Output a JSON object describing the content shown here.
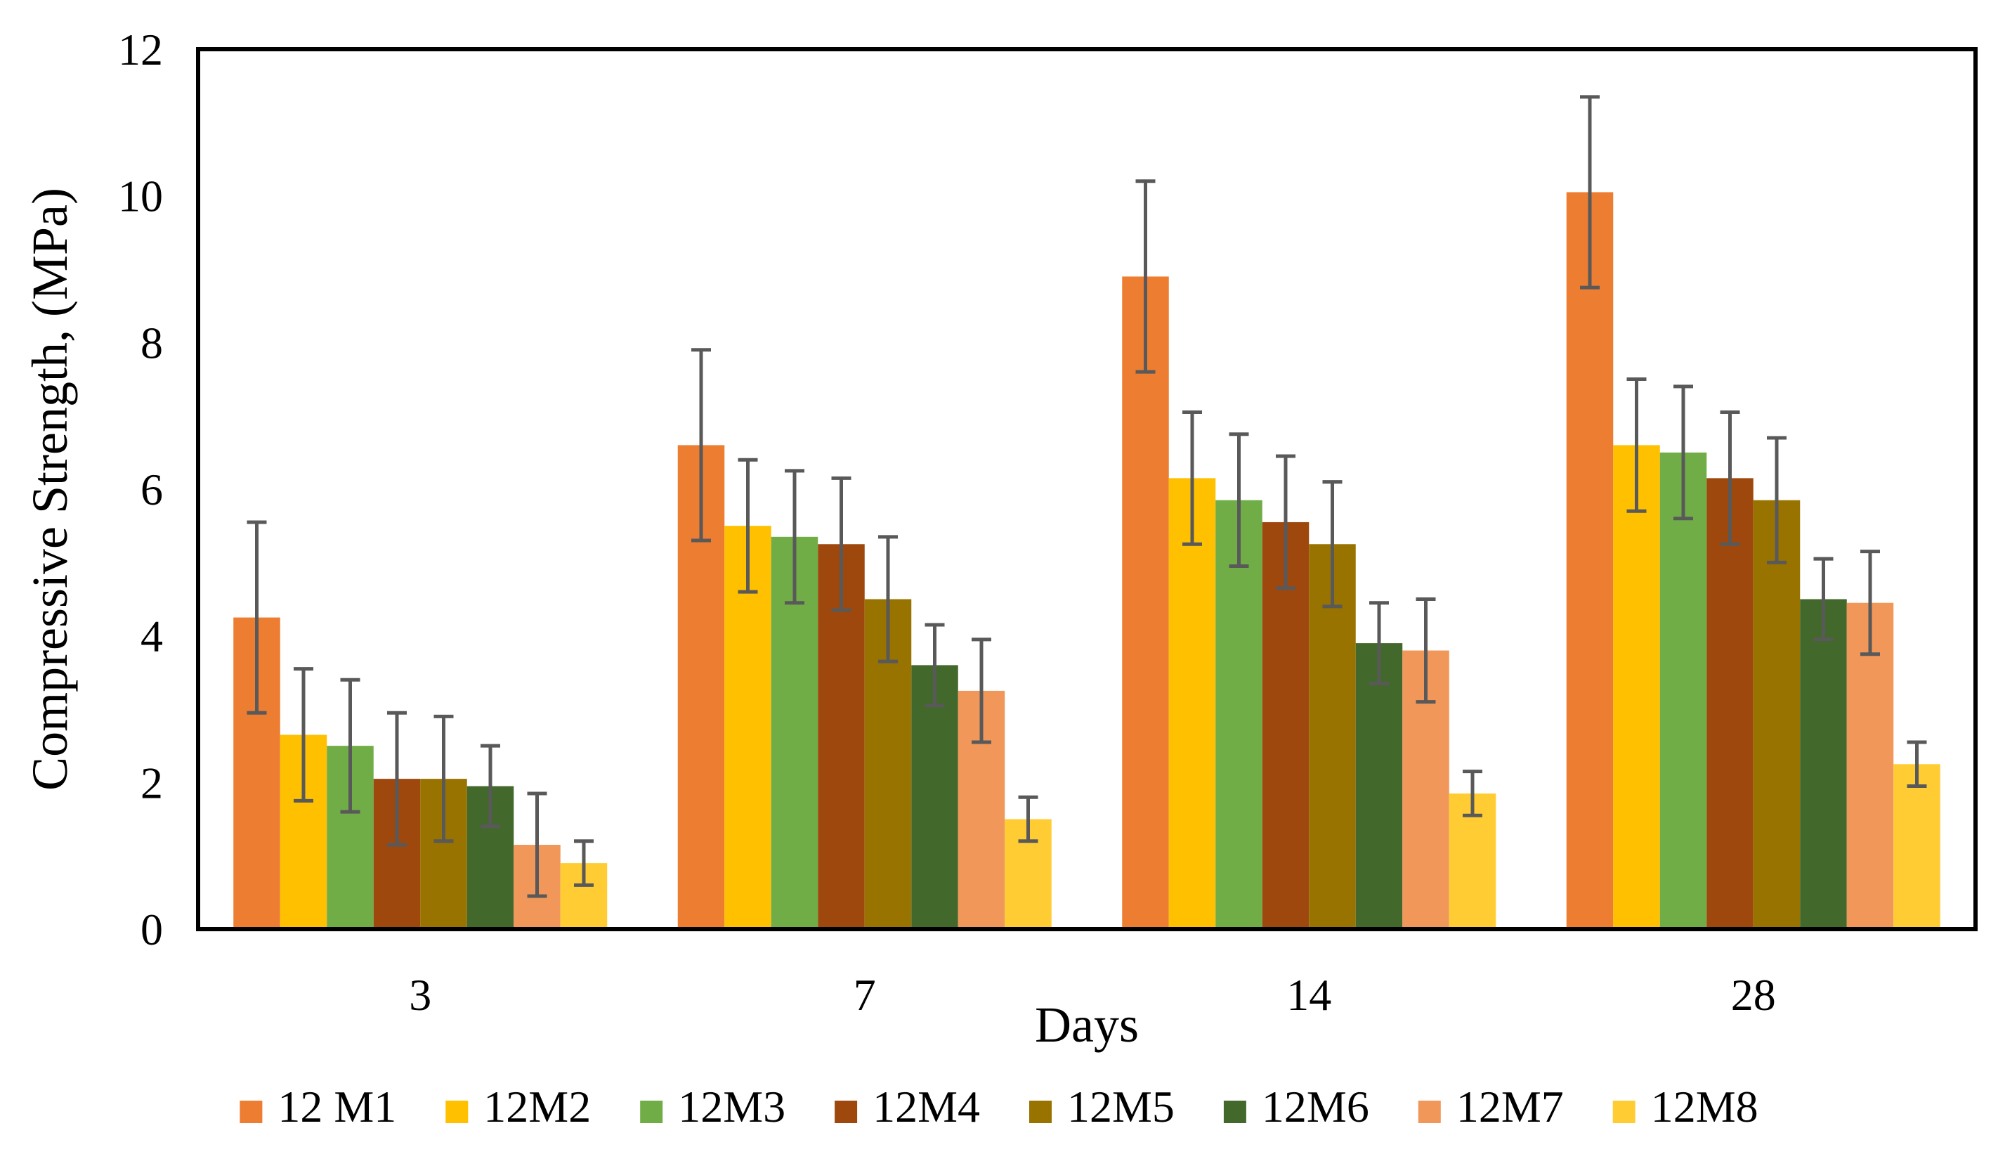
{
  "chart_data": {
    "type": "bar",
    "title": "",
    "xlabel": "Days",
    "ylabel": "Compressive Strength, (MPa)",
    "categories": [
      "3",
      "7",
      "14",
      "28"
    ],
    "ylim": [
      0,
      12
    ],
    "yticks": [
      0,
      2,
      4,
      6,
      8,
      10,
      12
    ],
    "grid": false,
    "legend": "bottom",
    "series": [
      {
        "name": "12 M1",
        "color": "#ED7D31",
        "values": [
          4.25,
          6.6,
          8.9,
          10.05
        ],
        "errors": [
          1.3,
          1.3,
          1.3,
          1.3
        ]
      },
      {
        "name": "12M2",
        "color": "#FFC000",
        "values": [
          2.65,
          5.5,
          6.15,
          6.6
        ],
        "errors": [
          0.9,
          0.9,
          0.9,
          0.9
        ]
      },
      {
        "name": "12M3",
        "color": "#70AD47",
        "values": [
          2.5,
          5.35,
          5.85,
          6.5
        ],
        "errors": [
          0.9,
          0.9,
          0.9,
          0.9
        ]
      },
      {
        "name": "12M4",
        "color": "#9E480E",
        "values": [
          2.05,
          5.25,
          5.55,
          6.15
        ],
        "errors": [
          0.9,
          0.9,
          0.9,
          0.9
        ]
      },
      {
        "name": "12M5",
        "color": "#997300",
        "values": [
          2.05,
          4.5,
          5.25,
          5.85
        ],
        "errors": [
          0.85,
          0.85,
          0.85,
          0.85
        ]
      },
      {
        "name": "12M6",
        "color": "#43682B",
        "values": [
          1.95,
          3.6,
          3.9,
          4.5
        ],
        "errors": [
          0.55,
          0.55,
          0.55,
          0.55
        ]
      },
      {
        "name": "12M7",
        "color": "#F1975A",
        "values": [
          1.15,
          3.25,
          3.8,
          4.45
        ],
        "errors": [
          0.7,
          0.7,
          0.7,
          0.7
        ]
      },
      {
        "name": "12M8",
        "color": "#FFCD33",
        "values": [
          0.9,
          1.5,
          1.85,
          2.25
        ],
        "errors": [
          0.3,
          0.3,
          0.3,
          0.3
        ]
      }
    ],
    "error_bar_color": "#595959"
  }
}
